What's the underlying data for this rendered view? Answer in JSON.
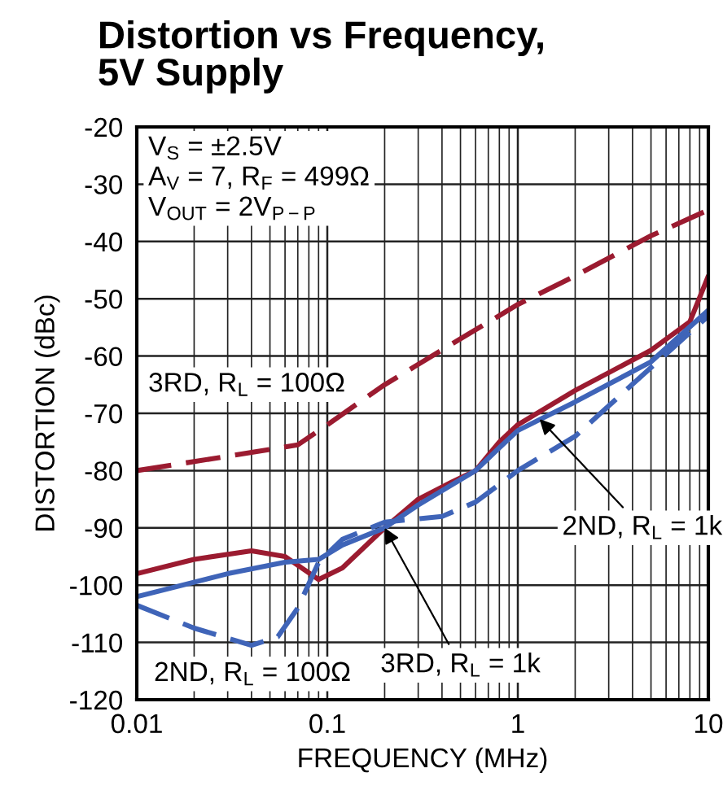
{
  "chart_data": {
    "type": "line",
    "title": "Distortion vs Frequency,\n5V Supply",
    "xlabel": "FREQUENCY (MHz)",
    "ylabel": "DISTORTION (dBc)",
    "log": "x",
    "xlim": [
      0.01,
      10
    ],
    "xticks": [
      0.01,
      0.1,
      1,
      10
    ],
    "ylim": [
      -120,
      -20
    ],
    "yticks": [
      -120,
      -110,
      -100,
      -90,
      -80,
      -70,
      -60,
      -50,
      -40,
      -30,
      -20
    ],
    "grid": true,
    "series": [
      {
        "color": "#9b1b30",
        "line_style": "dashed",
        "x": [
          0.01,
          0.03,
          0.07,
          0.1,
          0.2,
          0.5,
          1,
          2,
          5,
          10
        ],
        "values": [
          -80,
          -77.5,
          -75.5,
          -72,
          -65,
          -57,
          -51,
          -46,
          -39,
          -34.5
        ]
      },
      {
        "color": "#9b1b30",
        "line_style": "solid",
        "x": [
          0.01,
          0.02,
          0.04,
          0.06,
          0.09,
          0.12,
          0.2,
          0.3,
          0.45,
          0.6,
          0.8,
          1,
          2,
          5,
          8,
          10
        ],
        "values": [
          -98,
          -95.5,
          -94,
          -95,
          -99,
          -97,
          -90,
          -85,
          -82,
          -80,
          -75,
          -72,
          -66,
          -59,
          -54,
          -46
        ]
      },
      {
        "color": "#3f64b8",
        "line_style": "solid",
        "x": [
          0.01,
          0.03,
          0.06,
          0.09,
          0.12,
          0.2,
          0.3,
          0.6,
          0.8,
          1,
          2,
          5,
          10
        ],
        "values": [
          -102,
          -98,
          -96,
          -95.5,
          -93,
          -90,
          -86,
          -80,
          -76,
          -73,
          -68,
          -61,
          -52
        ]
      },
      {
        "color": "#3f64b8",
        "line_style": "dashed",
        "x": [
          0.01,
          0.02,
          0.04,
          0.055,
          0.07,
          0.09,
          0.12,
          0.2,
          0.4,
          0.6,
          1,
          2,
          5,
          10
        ],
        "values": [
          -103.5,
          -107.5,
          -110.5,
          -109,
          -104,
          -96,
          -92,
          -89,
          -88,
          -85.5,
          -80,
          -74,
          -62,
          -53
        ]
      }
    ],
    "annotations": [
      "V$_{S}$ = ±2.5V\nA$_{V}$ = 7, R$_{F}$ = 499Ω\nV$_{OUT}$ = 2V$_{P−P}$",
      "3RD, R$_{L}$ = 100Ω",
      "2ND, R$_{L}$ = 100Ω",
      {
        "text": "2ND, R$_{L}$ = 1k",
        "x": 1.3,
        "y": -71
      },
      {
        "text": "3RD, R$_{L}$ = 1k",
        "x": 0.2,
        "y": -90
      }
    ]
  }
}
